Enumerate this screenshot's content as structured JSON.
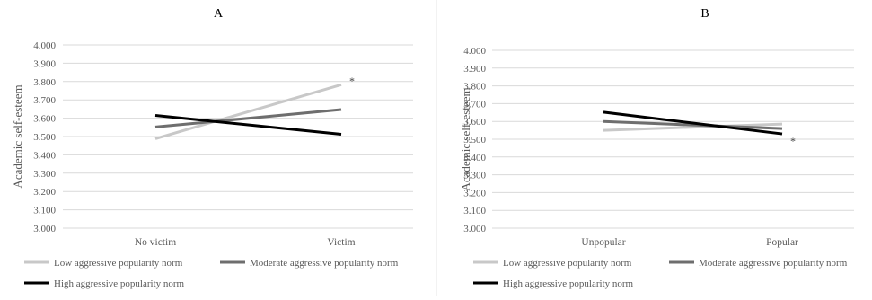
{
  "chart_data": [
    {
      "type": "line",
      "title": "A",
      "ylabel": "Academic self-esteem",
      "xlabel": "",
      "categories": [
        "No victim",
        "Victim"
      ],
      "ylim": [
        3.0,
        4.0
      ],
      "y_ticks": [
        "3.000",
        "3.100",
        "3.200",
        "3.300",
        "3.400",
        "3.500",
        "3.600",
        "3.700",
        "3.800",
        "3.900",
        "4.000"
      ],
      "grid": true,
      "legend_position": "bottom",
      "series": [
        {
          "name": "Low aggressive popularity norm",
          "color": "#c8c8c8",
          "values": [
            3.488,
            3.783
          ]
        },
        {
          "name": "Moderate aggressive popularity norm",
          "color": "#6e6e6e",
          "values": [
            3.552,
            3.647
          ]
        },
        {
          "name": "High aggressive popularity norm",
          "color": "#000000",
          "values": [
            3.615,
            3.512
          ]
        }
      ],
      "annotations": [
        {
          "text": "*",
          "category": "Victim",
          "value": 3.81
        }
      ]
    },
    {
      "type": "line",
      "title": "B",
      "ylabel": "Academic self-esteem",
      "xlabel": "",
      "categories": [
        "Unpopular",
        "Popular"
      ],
      "ylim": [
        3.0,
        4.0
      ],
      "y_ticks": [
        "3.000",
        "3.100",
        "3.200",
        "3.300",
        "3.400",
        "3.500",
        "3.600",
        "3.700",
        "3.800",
        "3.900",
        "4.000"
      ],
      "grid": true,
      "legend_position": "bottom",
      "series": [
        {
          "name": "Low aggressive popularity norm",
          "color": "#c8c8c8",
          "values": [
            3.55,
            3.585
          ]
        },
        {
          "name": "Moderate aggressive popularity norm",
          "color": "#6e6e6e",
          "values": [
            3.6,
            3.56
          ]
        },
        {
          "name": "High aggressive popularity norm",
          "color": "#000000",
          "values": [
            3.652,
            3.53
          ]
        }
      ],
      "annotations": [
        {
          "text": "*",
          "category": "Popular",
          "value": 3.495
        }
      ]
    }
  ]
}
